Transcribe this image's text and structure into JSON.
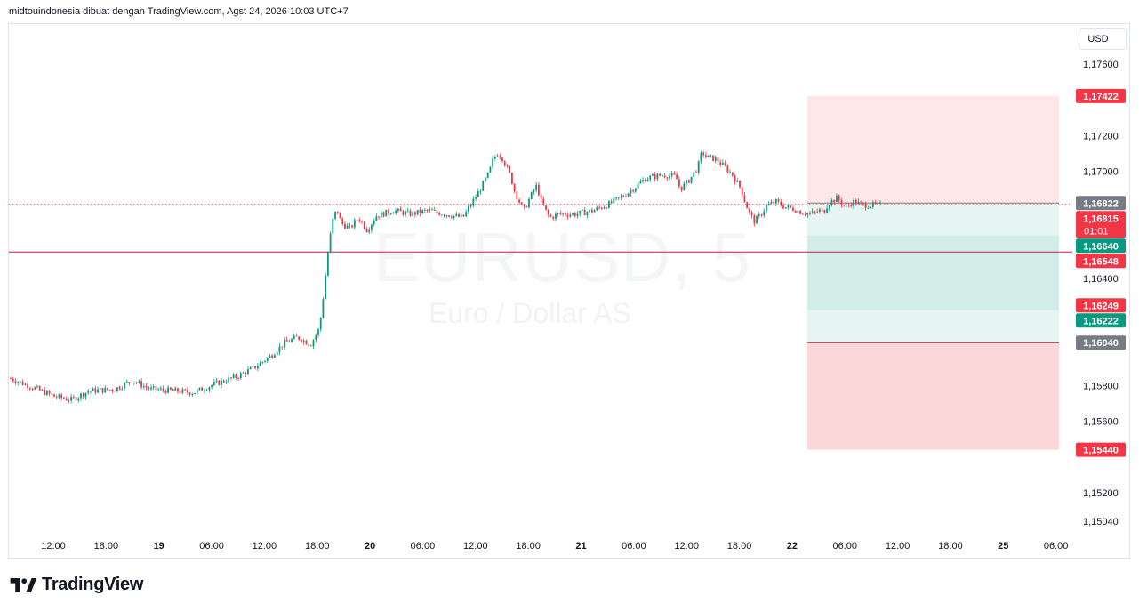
{
  "header": {
    "caption": "midtouindonesia dibuat dengan TradingView.com, Agst 24, 2026 10:03 UTC+7"
  },
  "toolbar": {
    "currency": "USD"
  },
  "watermark": {
    "symbol": "EURUSD, 5",
    "description": "Euro / Dollar AS"
  },
  "footer": {
    "brand": "TradingView"
  },
  "colors": {
    "up": "#089981",
    "down": "#f23645",
    "grid": "#f0f3fa",
    "axis_text": "#131722",
    "hline": "#c2185b",
    "stop_zone": "#f23645",
    "target_zone": "#089981",
    "neutral_label": "#787b86"
  },
  "chart_data": {
    "type": "candlestick",
    "symbol": "EURUSD",
    "interval": "5",
    "ylim": [
      1.1497,
      1.1782
    ],
    "y_ticks": [
      "1,17600",
      "1,17200",
      "1,17000",
      "1,16400",
      "1,15800",
      "1,15600",
      "1,15200",
      "1,15040"
    ],
    "x_ticks": [
      {
        "label": "12:00",
        "bold": false
      },
      {
        "label": "18:00",
        "bold": false
      },
      {
        "label": "19",
        "bold": true
      },
      {
        "label": "06:00",
        "bold": false
      },
      {
        "label": "12:00",
        "bold": false
      },
      {
        "label": "18:00",
        "bold": false
      },
      {
        "label": "20",
        "bold": true
      },
      {
        "label": "06:00",
        "bold": false
      },
      {
        "label": "12:00",
        "bold": false
      },
      {
        "label": "18:00",
        "bold": false
      },
      {
        "label": "21",
        "bold": true
      },
      {
        "label": "06:00",
        "bold": false
      },
      {
        "label": "12:00",
        "bold": false
      },
      {
        "label": "18:00",
        "bold": false
      },
      {
        "label": "22",
        "bold": true
      },
      {
        "label": "06:00",
        "bold": false
      },
      {
        "label": "12:00",
        "bold": false
      },
      {
        "label": "18:00",
        "bold": false
      },
      {
        "label": "25",
        "bold": true
      },
      {
        "label": "06:00",
        "bold": false
      }
    ],
    "price_path": [
      [
        0,
        1.1584
      ],
      [
        0.02,
        1.158
      ],
      [
        0.05,
        1.1574
      ],
      [
        0.07,
        1.1572
      ],
      [
        0.09,
        1.1577
      ],
      [
        0.12,
        1.1578
      ],
      [
        0.14,
        1.1583
      ],
      [
        0.16,
        1.1578
      ],
      [
        0.19,
        1.1577
      ],
      [
        0.21,
        1.1576
      ],
      [
        0.235,
        1.1581
      ],
      [
        0.26,
        1.1585
      ],
      [
        0.28,
        1.159
      ],
      [
        0.3,
        1.1597
      ],
      [
        0.315,
        1.1604
      ],
      [
        0.33,
        1.1607
      ],
      [
        0.345,
        1.1603
      ],
      [
        0.355,
        1.1612
      ],
      [
        0.36,
        1.1632
      ],
      [
        0.365,
        1.1655
      ],
      [
        0.37,
        1.1672
      ],
      [
        0.375,
        1.1679
      ],
      [
        0.38,
        1.1671
      ],
      [
        0.39,
        1.1668
      ],
      [
        0.4,
        1.1674
      ],
      [
        0.41,
        1.1667
      ],
      [
        0.42,
        1.1675
      ],
      [
        0.44,
        1.1678
      ],
      [
        0.46,
        1.1676
      ],
      [
        0.48,
        1.1678
      ],
      [
        0.5,
        1.1676
      ],
      [
        0.52,
        1.1674
      ],
      [
        0.53,
        1.1682
      ],
      [
        0.54,
        1.169
      ],
      [
        0.55,
        1.1699
      ],
      [
        0.555,
        1.1707
      ],
      [
        0.56,
        1.171
      ],
      [
        0.565,
        1.1708
      ],
      [
        0.575,
        1.1697
      ],
      [
        0.58,
        1.1688
      ],
      [
        0.59,
        1.1678
      ],
      [
        0.6,
        1.1688
      ],
      [
        0.605,
        1.1692
      ],
      [
        0.61,
        1.1683
      ],
      [
        0.615,
        1.1678
      ],
      [
        0.62,
        1.1674
      ],
      [
        0.63,
        1.1676
      ],
      [
        0.65,
        1.1676
      ],
      [
        0.67,
        1.1678
      ],
      [
        0.69,
        1.1682
      ],
      [
        0.71,
        1.1688
      ],
      [
        0.73,
        1.1696
      ],
      [
        0.75,
        1.1698
      ],
      [
        0.765,
        1.1697
      ],
      [
        0.77,
        1.169
      ],
      [
        0.78,
        1.1695
      ],
      [
        0.79,
        1.1702
      ],
      [
        0.795,
        1.1711
      ],
      [
        0.8,
        1.1708
      ],
      [
        0.81,
        1.1707
      ],
      [
        0.82,
        1.1703
      ],
      [
        0.83,
        1.1698
      ],
      [
        0.84,
        1.169
      ],
      [
        0.845,
        1.1682
      ],
      [
        0.85,
        1.1676
      ],
      [
        0.855,
        1.1672
      ],
      [
        0.86,
        1.1674
      ],
      [
        0.87,
        1.1681
      ],
      [
        0.88,
        1.1683
      ],
      [
        0.89,
        1.168
      ],
      [
        0.9,
        1.1679
      ],
      [
        0.91,
        1.1677
      ],
      [
        0.92,
        1.1676
      ],
      [
        0.93,
        1.1678
      ],
      [
        0.935,
        1.1677
      ],
      [
        0.94,
        1.1682
      ],
      [
        0.95,
        1.1685
      ],
      [
        0.96,
        1.168
      ],
      [
        0.97,
        1.1683
      ],
      [
        0.98,
        1.1681
      ]
    ],
    "last_price": 1.16815,
    "countdown": "01:01",
    "horizontal_line": 1.16548,
    "position_tool": {
      "entry": 1.16822,
      "stop": 1.17422,
      "target": 1.1544,
      "partial_1": 1.1664,
      "partial_2": 1.16222,
      "level_low": 1.1604
    },
    "price_labels": [
      {
        "price": 1.17422,
        "text": "1,17422",
        "color": "#f23645"
      },
      {
        "price": 1.16822,
        "text": "1,16822",
        "color": "#787b86"
      },
      {
        "price": 1.16815,
        "text": "1,16815",
        "color": "#f23645",
        "sub": "01:01"
      },
      {
        "price": 1.1664,
        "text": "1,16640",
        "color": "#089981"
      },
      {
        "price": 1.16548,
        "text": "1,16548",
        "color": "#f23645"
      },
      {
        "price": 1.16249,
        "text": "1,16249",
        "color": "#f23645"
      },
      {
        "price": 1.16222,
        "text": "1,16222",
        "color": "#089981"
      },
      {
        "price": 1.1604,
        "text": "1,16040",
        "color": "#787b86"
      },
      {
        "price": 1.1544,
        "text": "1,15440",
        "color": "#f23645"
      }
    ]
  }
}
